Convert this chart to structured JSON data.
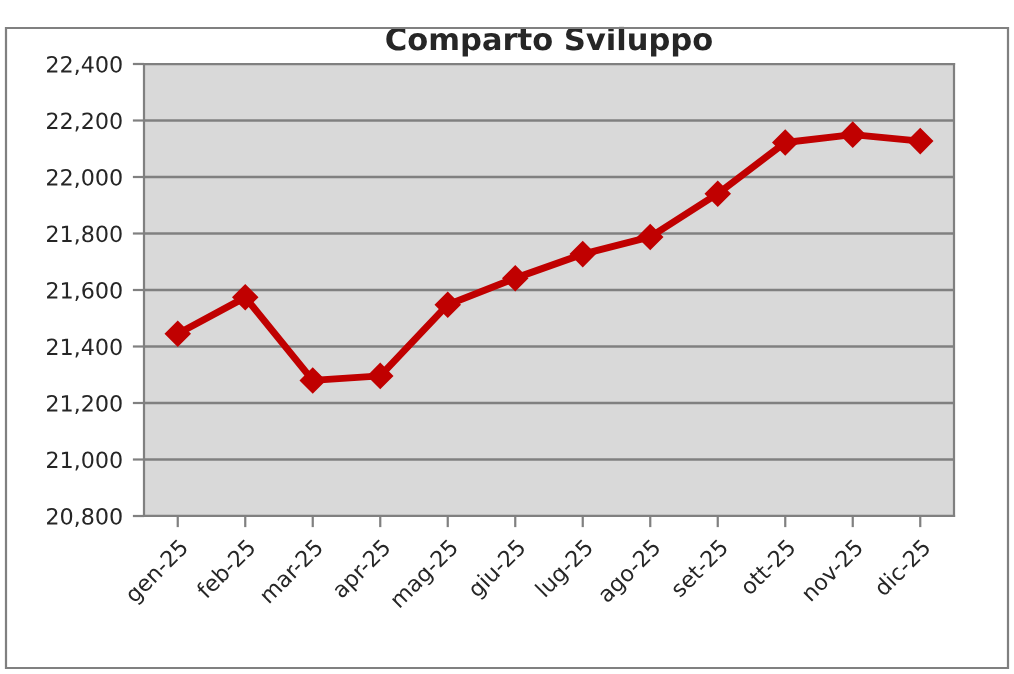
{
  "chart_data": {
    "type": "line",
    "title": "Comparto Sviluppo",
    "categories": [
      "gen-25",
      "feb-25",
      "mar-25",
      "apr-25",
      "mag-25",
      "giu-25",
      "lug-25",
      "ago-25",
      "set-25",
      "ott-25",
      "nov-25",
      "dic-25"
    ],
    "series": [
      {
        "color": "#c00000",
        "values": [
          21445,
          21574,
          21280,
          21296,
          21548,
          21642,
          21727,
          21788,
          21941,
          22122,
          22150,
          22127
        ]
      }
    ],
    "ylim": [
      20800,
      22400
    ],
    "yticks": [
      {
        "value": 20800,
        "label": "20,800"
      },
      {
        "value": 21000,
        "label": "21,000"
      },
      {
        "value": 21200,
        "label": "21,200"
      },
      {
        "value": 21400,
        "label": "21,400"
      },
      {
        "value": 21600,
        "label": "21,600"
      },
      {
        "value": 21800,
        "label": "21,800"
      },
      {
        "value": 22000,
        "label": "22,000"
      },
      {
        "value": 22200,
        "label": "22,200"
      },
      {
        "value": 22400,
        "label": "22,400"
      }
    ],
    "grid": "y",
    "marker": "diamond",
    "line_style": "solid",
    "legend": false
  }
}
